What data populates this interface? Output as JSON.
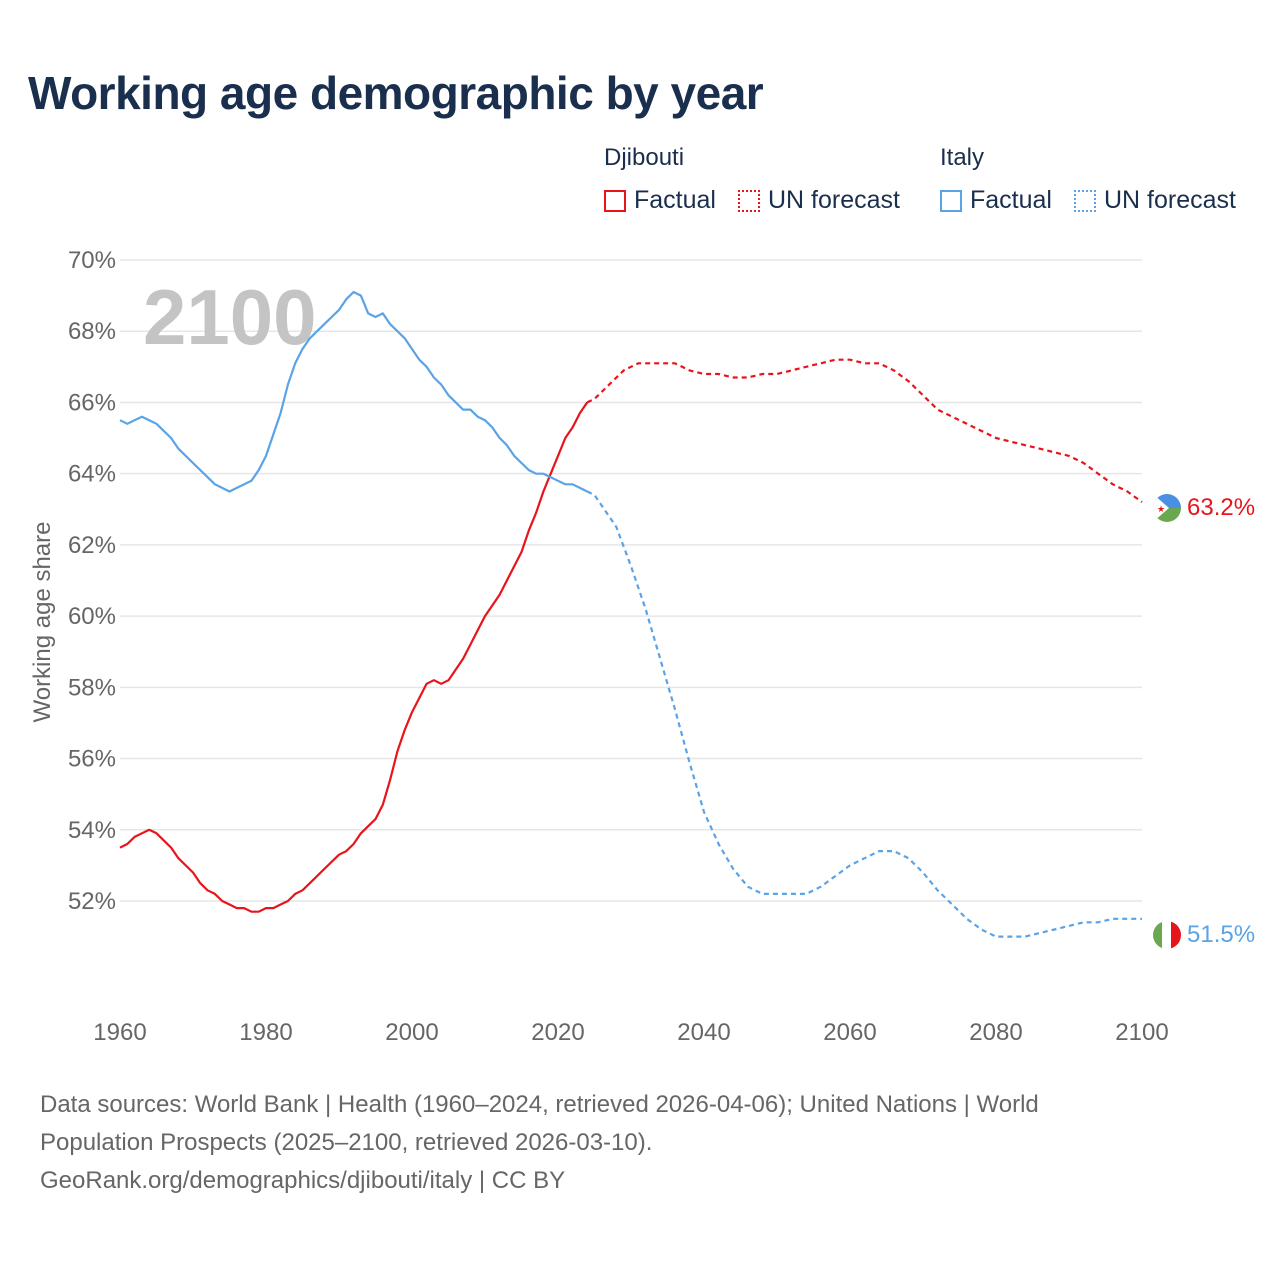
{
  "title": "Working age demographic by year",
  "legend": {
    "groups": [
      {
        "name": "Djibouti",
        "color": "#e8141c",
        "items": [
          "Factual",
          "UN forecast"
        ]
      },
      {
        "name": "Italy",
        "color": "#5aa3e6",
        "items": [
          "Factual",
          "UN forecast"
        ]
      }
    ]
  },
  "year_watermark": "2100",
  "end_labels": {
    "djibouti": "63.2%",
    "italy": "51.5%"
  },
  "footer": {
    "line1": "Data sources: World Bank | Health (1960–2024, retrieved 2026-04-06); United Nations | World",
    "line2": "Population Prospects (2025–2100, retrieved 2026-03-10).",
    "line3": "GeoRank.org/demographics/djibouti/italy | CC BY"
  },
  "colors": {
    "djibouti": "#e8141c",
    "italy": "#5aa3e6",
    "grid": "#e6e6e6",
    "axis_text": "#666666",
    "title": "#1a2e4d"
  },
  "chart_data": {
    "type": "line",
    "title": "Working age demographic by year",
    "xlabel": "",
    "ylabel": "Working age share",
    "xlim": [
      1960,
      2100
    ],
    "ylim": [
      49.5,
      70
    ],
    "x_ticks": [
      1960,
      1980,
      2000,
      2020,
      2040,
      2060,
      2080,
      2100
    ],
    "y_ticks": [
      52,
      54,
      56,
      58,
      60,
      62,
      64,
      66,
      68,
      70
    ],
    "y_tick_suffix": "%",
    "grid": true,
    "factual_range": [
      1960,
      2024
    ],
    "forecast_range": [
      2024,
      2100
    ],
    "series": [
      {
        "name": "Djibouti",
        "x": [
          1960,
          1961,
          1962,
          1963,
          1964,
          1965,
          1966,
          1967,
          1968,
          1970,
          1971,
          1972,
          1973,
          1974,
          1975,
          1976,
          1977,
          1978,
          1979,
          1980,
          1981,
          1982,
          1983,
          1984,
          1985,
          1986,
          1988,
          1990,
          1991,
          1992,
          1993,
          1994,
          1995,
          1996,
          1997,
          1998,
          1999,
          2000,
          2001,
          2002,
          2003,
          2004,
          2005,
          2006,
          2007,
          2008,
          2009,
          2010,
          2012,
          2013,
          2014,
          2015,
          2016,
          2017,
          2018,
          2019,
          2020,
          2021,
          2022,
          2023,
          2024,
          2025,
          2026,
          2027,
          2028,
          2029,
          2030,
          2031,
          2032,
          2033,
          2034,
          2035,
          2036,
          2037,
          2038,
          2040,
          2042,
          2044,
          2046,
          2048,
          2050,
          2052,
          2054,
          2056,
          2058,
          2060,
          2062,
          2064,
          2066,
          2068,
          2070,
          2072,
          2074,
          2076,
          2078,
          2080,
          2082,
          2084,
          2086,
          2088,
          2090,
          2092,
          2094,
          2096,
          2098,
          2100
        ],
        "values": [
          53.5,
          53.6,
          53.8,
          53.9,
          54.0,
          53.9,
          53.7,
          53.5,
          53.2,
          52.8,
          52.5,
          52.3,
          52.2,
          52.0,
          51.9,
          51.8,
          51.8,
          51.7,
          51.7,
          51.8,
          51.8,
          51.9,
          52.0,
          52.2,
          52.3,
          52.5,
          52.9,
          53.3,
          53.4,
          53.6,
          53.9,
          54.1,
          54.3,
          54.7,
          55.4,
          56.2,
          56.8,
          57.3,
          57.7,
          58.1,
          58.2,
          58.1,
          58.2,
          58.5,
          58.8,
          59.2,
          59.6,
          60.0,
          60.6,
          61.0,
          61.4,
          61.8,
          62.4,
          62.9,
          63.5,
          64.0,
          64.5,
          65.0,
          65.3,
          65.7,
          66.0,
          66.1,
          66.3,
          66.5,
          66.7,
          66.9,
          67.0,
          67.1,
          67.1,
          67.1,
          67.1,
          67.1,
          67.1,
          67.0,
          66.9,
          66.8,
          66.8,
          66.7,
          66.7,
          66.8,
          66.8,
          66.9,
          67.0,
          67.1,
          67.2,
          67.2,
          67.1,
          67.1,
          66.9,
          66.6,
          66.2,
          65.8,
          65.6,
          65.4,
          65.2,
          65.0,
          64.9,
          64.8,
          64.7,
          64.6,
          64.5,
          64.3,
          64.0,
          63.7,
          63.5,
          63.2
        ]
      },
      {
        "name": "Italy",
        "x": [
          1960,
          1961,
          1962,
          1963,
          1964,
          1965,
          1966,
          1967,
          1968,
          1970,
          1972,
          1973,
          1974,
          1975,
          1976,
          1977,
          1978,
          1979,
          1980,
          1981,
          1982,
          1983,
          1984,
          1985,
          1986,
          1987,
          1988,
          1989,
          1990,
          1991,
          1992,
          1993,
          1994,
          1995,
          1996,
          1997,
          1998,
          1999,
          2000,
          2001,
          2002,
          2003,
          2004,
          2005,
          2006,
          2007,
          2008,
          2009,
          2010,
          2011,
          2012,
          2013,
          2014,
          2015,
          2016,
          2017,
          2018,
          2019,
          2020,
          2021,
          2022,
          2023,
          2024,
          2025,
          2026,
          2028,
          2030,
          2032,
          2034,
          2036,
          2038,
          2040,
          2042,
          2044,
          2046,
          2048,
          2050,
          2052,
          2054,
          2056,
          2058,
          2060,
          2062,
          2064,
          2066,
          2068,
          2070,
          2072,
          2074,
          2076,
          2078,
          2080,
          2082,
          2084,
          2086,
          2088,
          2090,
          2092,
          2094,
          2096,
          2098,
          2100
        ],
        "values": [
          65.5,
          65.4,
          65.5,
          65.6,
          65.5,
          65.4,
          65.2,
          65.0,
          64.7,
          64.3,
          63.9,
          63.7,
          63.6,
          63.5,
          63.6,
          63.7,
          63.8,
          64.1,
          64.5,
          65.1,
          65.7,
          66.5,
          67.1,
          67.5,
          67.8,
          68.0,
          68.2,
          68.4,
          68.6,
          68.9,
          69.1,
          69.0,
          68.5,
          68.4,
          68.5,
          68.2,
          68.0,
          67.8,
          67.5,
          67.2,
          67.0,
          66.7,
          66.5,
          66.2,
          66.0,
          65.8,
          65.8,
          65.6,
          65.5,
          65.3,
          65.0,
          64.8,
          64.5,
          64.3,
          64.1,
          64.0,
          64.0,
          63.9,
          63.8,
          63.7,
          63.7,
          63.6,
          63.5,
          63.4,
          63.1,
          62.5,
          61.4,
          60.2,
          58.8,
          57.4,
          55.9,
          54.5,
          53.6,
          52.9,
          52.4,
          52.2,
          52.2,
          52.2,
          52.2,
          52.4,
          52.7,
          53.0,
          53.2,
          53.4,
          53.4,
          53.2,
          52.8,
          52.3,
          51.9,
          51.5,
          51.2,
          51.0,
          51.0,
          51.0,
          51.1,
          51.2,
          51.3,
          51.4,
          51.4,
          51.5,
          51.5,
          51.5
        ]
      }
    ]
  }
}
